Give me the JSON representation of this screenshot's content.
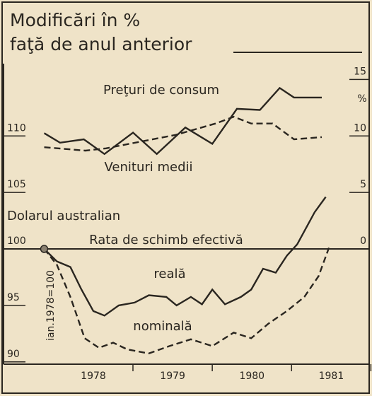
{
  "chart_data": {
    "type": "line",
    "title": "Modificări în %",
    "subtitle": "faţă de anul anterior",
    "annotations": [
      "Preţuri de consum",
      "Venituri medii",
      "Dolarul australian",
      "Rata de schimb efectivă",
      "reală",
      "nominală",
      "ian.1978=100",
      "%"
    ],
    "xlim": [
      1976.93,
      1981.46
    ],
    "xticks": [
      1978,
      1979,
      1980,
      1981
    ],
    "ylim": [
      89.8,
      116.4
    ],
    "yticks": [
      90,
      95,
      100,
      105,
      110
    ],
    "y2lim": [
      -10.2,
      16.4
    ],
    "y2ticks": [
      0,
      5,
      10,
      15
    ],
    "series": [
      {
        "name": "Venituri medii",
        "color": "#2a2620",
        "axis": "y2",
        "dash": false,
        "x": [
          1977.38,
          1977.58,
          1977.88,
          1978.14,
          1978.5,
          1978.8,
          1979.16,
          1979.5,
          1979.81,
          1980.1,
          1980.35,
          1980.53,
          1980.88
        ],
        "values": [
          10.25,
          9.4,
          9.7,
          8.4,
          10.3,
          8.4,
          10.75,
          9.3,
          12.4,
          12.3,
          14.25,
          13.4,
          13.4
        ]
      },
      {
        "name": "Preţuri de consum",
        "color": "#2a2620",
        "axis": "y2",
        "dash": true,
        "x": [
          1977.38,
          1977.9,
          1978.16,
          1978.6,
          1979.04,
          1979.54,
          1979.77,
          1979.99,
          1980.26,
          1980.53,
          1980.88
        ],
        "values": [
          9.0,
          8.7,
          8.9,
          9.5,
          10.1,
          11.1,
          11.7,
          11.1,
          11.1,
          9.7,
          9.9
        ]
      },
      {
        "name": "reală",
        "color": "#2a2620",
        "axis": "y",
        "dash": false,
        "x": [
          1977.38,
          1977.54,
          1977.71,
          1977.85,
          1978.0,
          1978.14,
          1978.32,
          1978.52,
          1978.7,
          1978.92,
          1979.05,
          1979.23,
          1979.37,
          1979.5,
          1979.66,
          1979.86,
          1979.99,
          1980.14,
          1980.3,
          1980.44,
          1980.57,
          1980.79,
          1980.93
        ],
        "values": [
          100,
          98.9,
          98.4,
          96.4,
          94.5,
          94.1,
          95,
          95.25,
          95.9,
          95.75,
          95,
          95.75,
          95.1,
          96.4,
          95.1,
          95.75,
          96.4,
          98.25,
          97.9,
          99.4,
          100.4,
          103.25,
          104.6
        ]
      },
      {
        "name": "nominală",
        "color": "#2a2620",
        "axis": "y",
        "dash": true,
        "x": [
          1977.38,
          1977.54,
          1977.71,
          1977.89,
          1978.07,
          1978.25,
          1978.43,
          1978.7,
          1978.96,
          1979.23,
          1979.5,
          1979.77,
          1979.99,
          1980.21,
          1980.44,
          1980.66,
          1980.84,
          1980.97
        ],
        "values": [
          100,
          98.6,
          95.75,
          92.1,
          91.25,
          91.7,
          91.1,
          90.75,
          91.4,
          92,
          91.4,
          92.6,
          92.1,
          93.4,
          94.5,
          95.75,
          97.6,
          100.1
        ]
      }
    ]
  }
}
